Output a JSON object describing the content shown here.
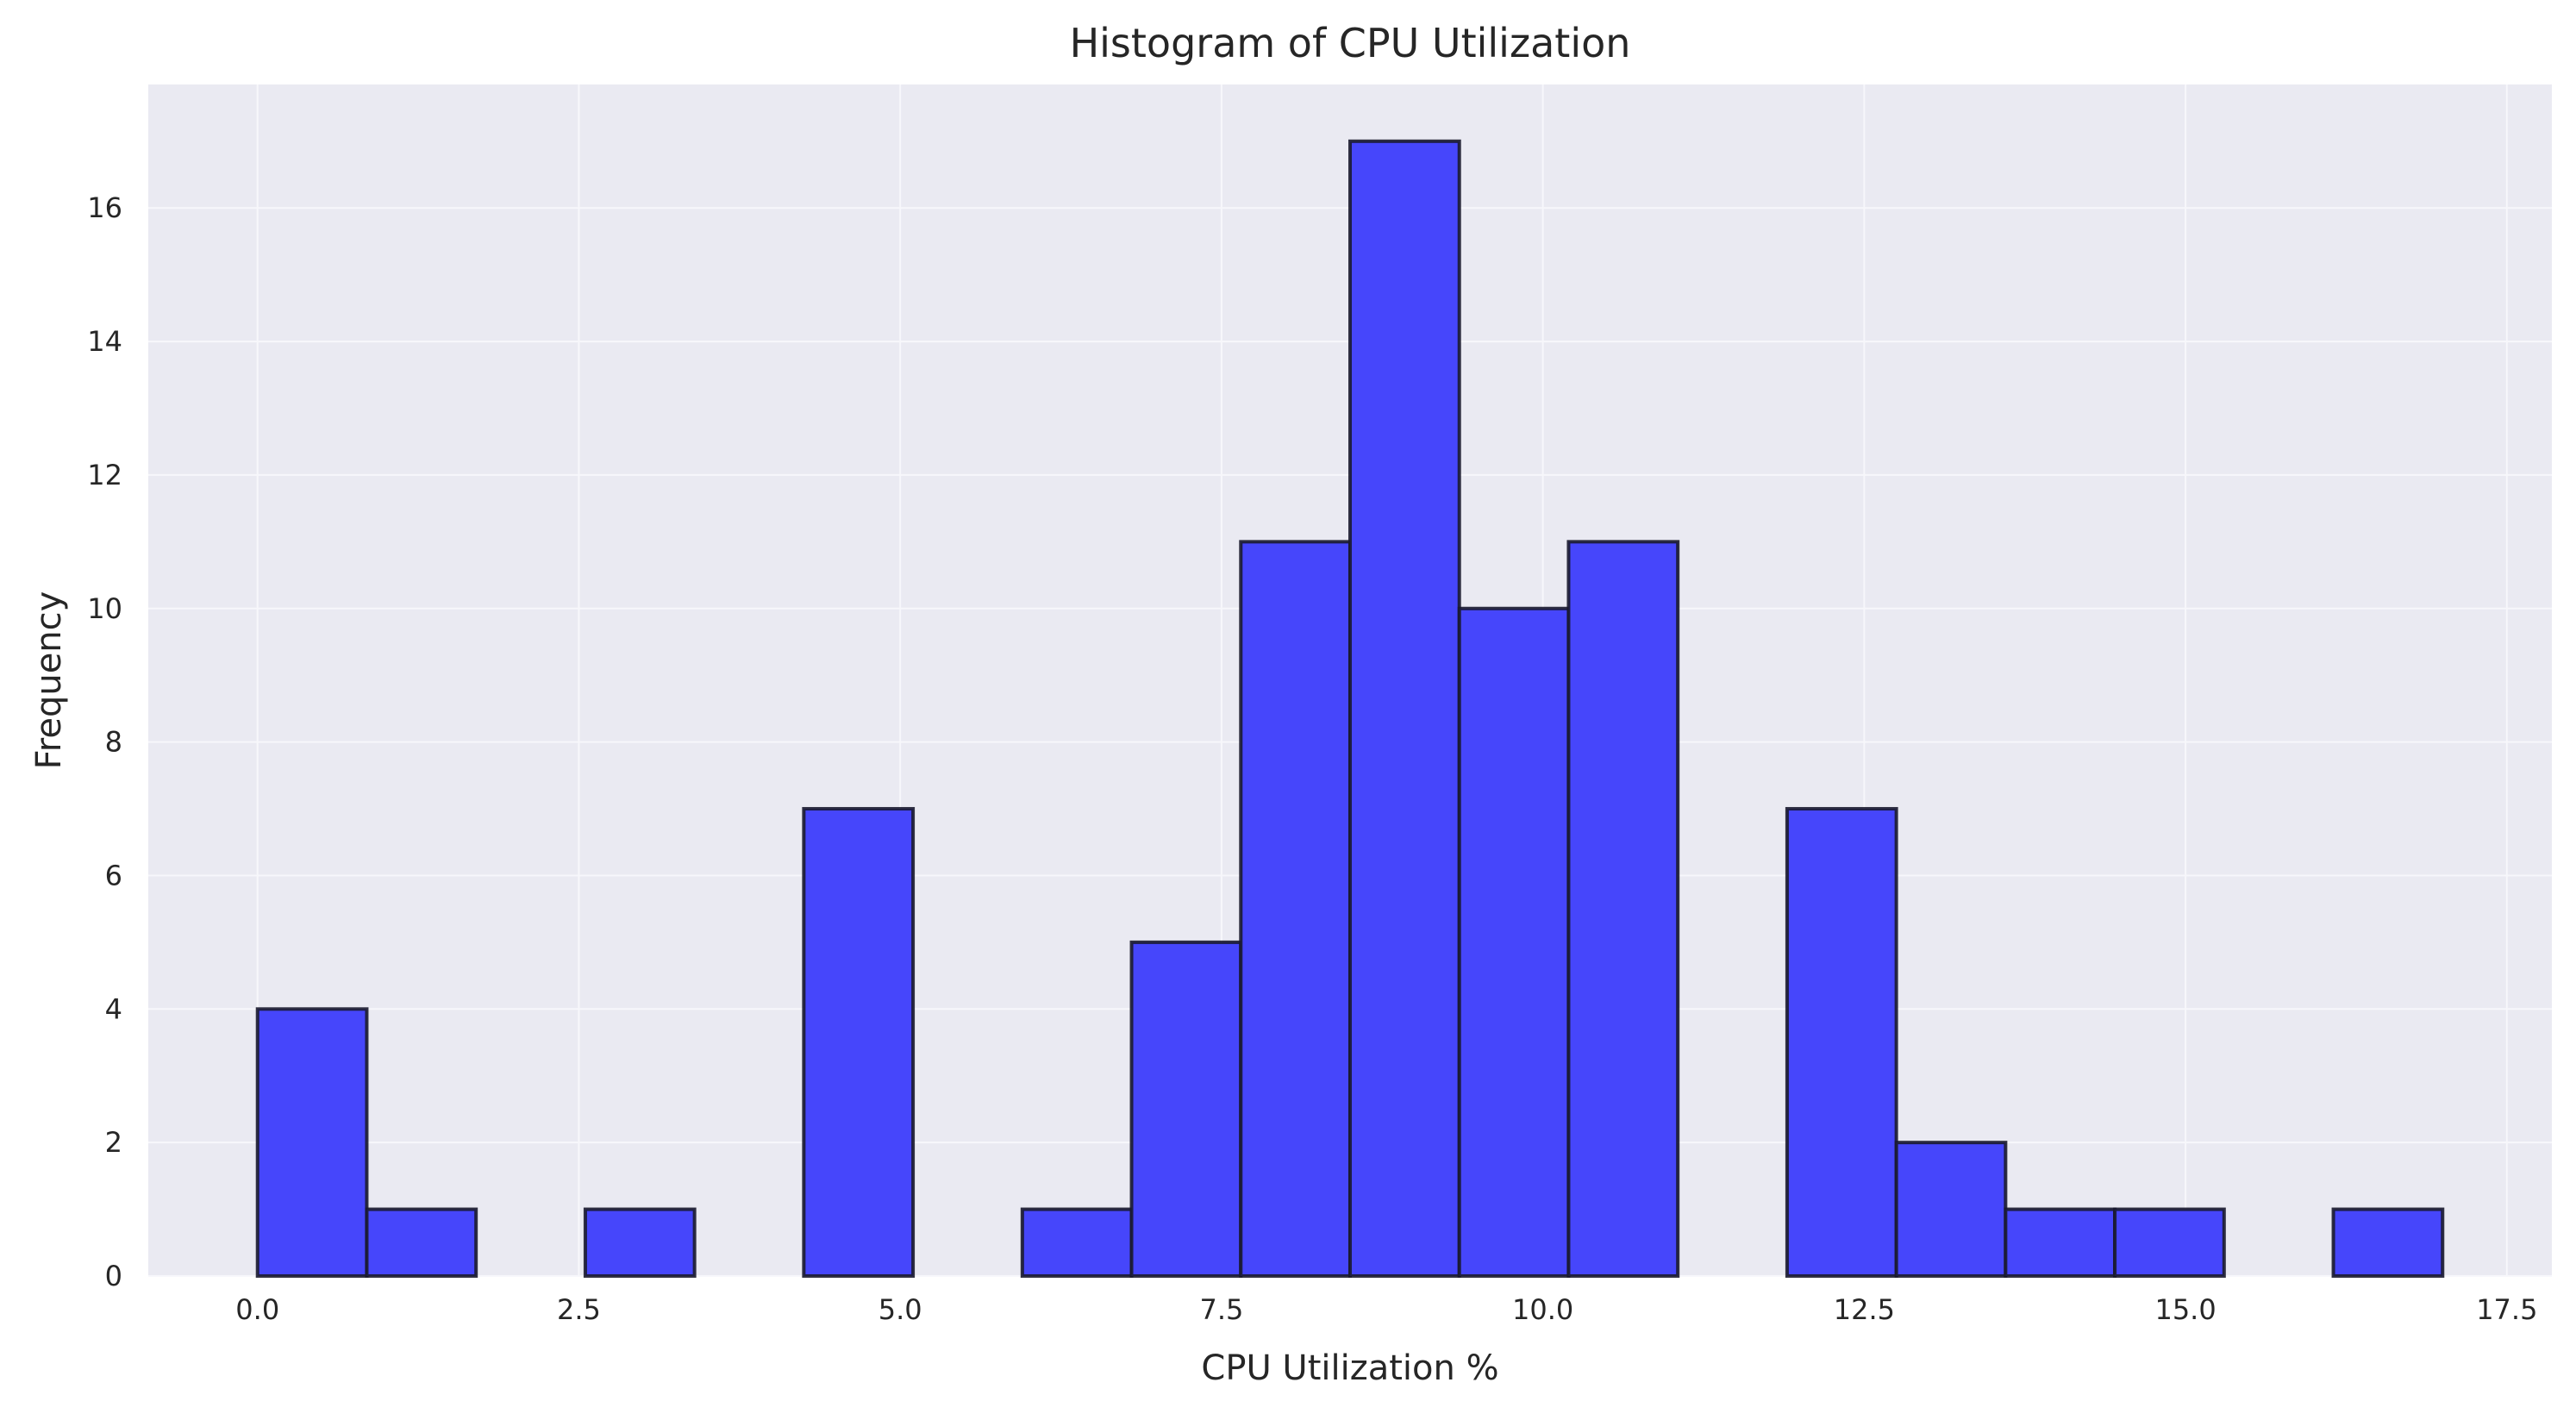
{
  "chart_data": {
    "type": "bar",
    "title": "Histogram of CPU Utilization",
    "xlabel": "CPU Utilization %",
    "ylabel": "Frequency",
    "xlim": [
      -0.85,
      17.85
    ],
    "ylim": [
      0,
      17.85
    ],
    "x_ticks": [
      0.0,
      2.5,
      5.0,
      7.5,
      10.0,
      12.5,
      15.0,
      17.5
    ],
    "x_tick_labels": [
      "0.0",
      "2.5",
      "5.0",
      "7.5",
      "10.0",
      "12.5",
      "15.0",
      "17.5"
    ],
    "y_ticks": [
      0,
      2,
      4,
      6,
      8,
      10,
      12,
      14,
      16
    ],
    "y_tick_labels": [
      "0",
      "2",
      "4",
      "6",
      "8",
      "10",
      "12",
      "14",
      "16"
    ],
    "bin_edges": [
      0.0,
      0.85,
      1.7,
      2.55,
      3.4,
      4.25,
      5.1,
      5.95,
      6.8,
      7.65,
      8.5,
      9.35,
      10.2,
      11.05,
      11.9,
      12.75,
      13.6,
      14.45,
      15.3,
      16.15,
      17.0
    ],
    "values": [
      4,
      1,
      0,
      1,
      0,
      7,
      0,
      1,
      5,
      11,
      17,
      10,
      11,
      0,
      7,
      2,
      1,
      1,
      0,
      1
    ],
    "grid": true,
    "colors": {
      "bar_fill": "#4646fb",
      "bar_edge": "#1a1a2e",
      "plot_background": "#eaeaf2",
      "grid": "#f7f7fb"
    }
  }
}
